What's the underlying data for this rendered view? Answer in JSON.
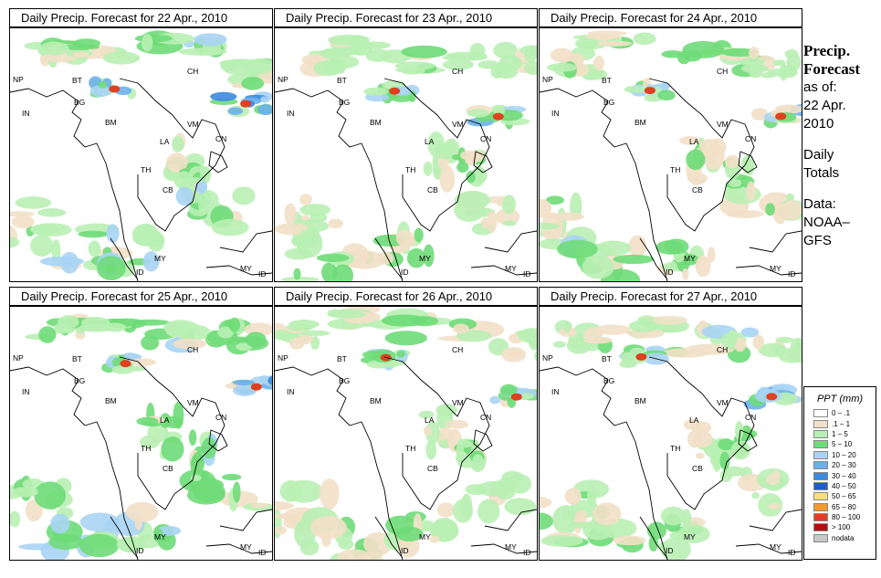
{
  "panels": [
    {
      "title": "Daily Precip. Forecast for  22 Apr., 2010",
      "seed": 11,
      "intensity": 1.0
    },
    {
      "title": "Daily Precip. Forecast for  23 Apr., 2010",
      "seed": 23,
      "intensity": 0.85
    },
    {
      "title": "Daily Precip. Forecast for  24 Apr., 2010",
      "seed": 37,
      "intensity": 0.9
    },
    {
      "title": "Daily Precip. Forecast for  25 Apr., 2010",
      "seed": 41,
      "intensity": 1.1
    },
    {
      "title": "Daily Precip. Forecast for  26 Apr., 2010",
      "seed": 59,
      "intensity": 0.8
    },
    {
      "title": "Daily Precip. Forecast for  27 Apr., 2010",
      "seed": 73,
      "intensity": 0.9
    }
  ],
  "region_labels": {
    "np": "NP",
    "bt": "BT",
    "bg": "BG",
    "in": "IN",
    "ch": "CH",
    "bm": "BM",
    "vm": "VM",
    "la": "LA",
    "th": "TH",
    "cb": "CB",
    "my_west": "MY",
    "my_east": "MY",
    "id_west": "ID",
    "id_east": "ID",
    "cn": "CN"
  },
  "sidebar": {
    "title_line1": "Precip.",
    "title_line2": "Forecast",
    "asof_line1": "as of:",
    "asof_line2": "22 Apr.",
    "asof_line3": "2010",
    "totals_line1": "Daily",
    "totals_line2": "Totals",
    "data_line1": "Data:",
    "data_line2": "NOAA–",
    "data_line3": "GFS"
  },
  "legend": {
    "title": "PPT (mm)",
    "entries": [
      {
        "label": "0 – .1",
        "color": "#ffffff"
      },
      {
        "label": ".1 – 1",
        "color": "#f2e0c8"
      },
      {
        "label": "1 – 5",
        "color": "#b9efb4"
      },
      {
        "label": "5 – 10",
        "color": "#6fdc78"
      },
      {
        "label": "10 – 20",
        "color": "#a8d4f4"
      },
      {
        "label": "20 – 30",
        "color": "#6cb0ec"
      },
      {
        "label": "30 – 40",
        "color": "#3d8ae0"
      },
      {
        "label": "40 – 50",
        "color": "#1f5ccc"
      },
      {
        "label": "50 – 65",
        "color": "#f5e07a"
      },
      {
        "label": "65 – 80",
        "color": "#f29a2e"
      },
      {
        "label": "80 – 100",
        "color": "#e0401e"
      },
      {
        "label": "> 100",
        "color": "#b01010"
      },
      {
        "label": "nodata",
        "color": "#c8c8c8"
      }
    ]
  }
}
